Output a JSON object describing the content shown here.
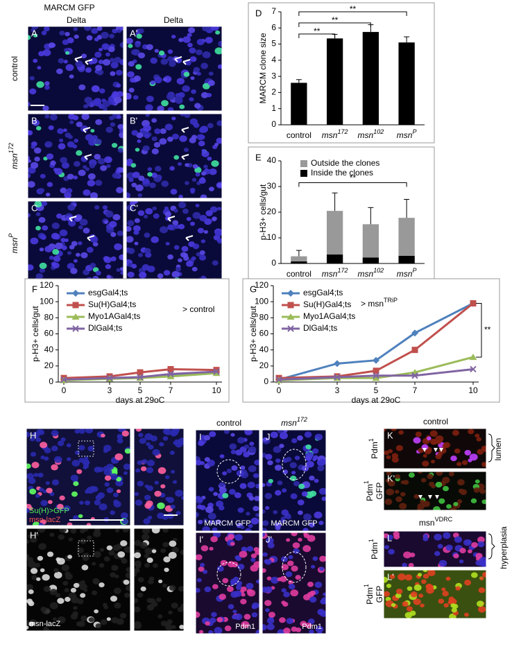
{
  "chart_data": [
    {
      "type": "bar",
      "panel": "D",
      "ylabel": "MARCM clone size",
      "categories": [
        "control",
        "msn172",
        "msn102",
        "msnP"
      ],
      "values": [
        2.6,
        5.35,
        5.75,
        5.1
      ],
      "errors": [
        0.2,
        0.25,
        0.45,
        0.35
      ],
      "color": "#000000",
      "ylim": [
        0,
        7
      ],
      "yticks": [
        0,
        1,
        2,
        3,
        4,
        5,
        6,
        7
      ],
      "annotations": [
        "**",
        "**",
        "**"
      ]
    },
    {
      "type": "stacked_bar",
      "panel": "E",
      "ylabel": "p-H3+ cells/gut",
      "categories": [
        "control",
        "msn172",
        "msn102",
        "msnP"
      ],
      "series": [
        {
          "name": "Inside the clones",
          "color": "#000000",
          "values": [
            0.8,
            3.5,
            2.3,
            3.0
          ],
          "errors": [
            0.5,
            1.5,
            2.0,
            1.2
          ]
        },
        {
          "name": "Outside the clones",
          "color": "#999999",
          "values": [
            2.0,
            17.0,
            13.0,
            14.8
          ],
          "errors": [
            2.3,
            7.0,
            6.5,
            7.2
          ]
        }
      ],
      "ylim": [
        0,
        40
      ],
      "yticks": [
        0,
        10,
        20,
        30,
        40
      ],
      "annotations": [
        "**"
      ]
    },
    {
      "type": "line",
      "panel": "F",
      "ylabel": "p-H3+ cells/gut",
      "xlabel": "days at 29oC",
      "x": [
        0,
        3,
        5,
        7,
        10
      ],
      "xlim": [
        0,
        10
      ],
      "xticks": [
        0,
        3,
        5,
        7,
        10
      ],
      "series": [
        {
          "name": "esgGal4;ts",
          "color": "#4f81bd",
          "marker": "diamond",
          "values": [
            3,
            5,
            6,
            8,
            12
          ]
        },
        {
          "name": "Su(H)Gal4;ts",
          "color": "#c0504d",
          "marker": "square",
          "values": [
            5,
            7,
            12,
            16,
            15
          ]
        },
        {
          "name": "Myo1AGal4;ts",
          "color": "#9bbb59",
          "marker": "triangle",
          "values": [
            2,
            4,
            5,
            7,
            11
          ]
        },
        {
          "name": "DlGal4;ts",
          "color": "#8064a2",
          "marker": "x",
          "values": [
            3,
            5,
            6,
            10,
            13
          ]
        }
      ],
      "ylim": [
        0,
        120
      ],
      "yticks": [
        0,
        20,
        40,
        60,
        80,
        100,
        120
      ],
      "annotations": [
        "> control"
      ]
    },
    {
      "type": "line",
      "panel": "G",
      "ylabel": "p-H3+ cells/gut",
      "xlabel": "days at 29oC",
      "x": [
        0,
        3,
        5,
        7,
        10
      ],
      "xlim": [
        0,
        10
      ],
      "xticks": [
        0,
        3,
        5,
        7,
        10
      ],
      "series": [
        {
          "name": "esgGal4;ts",
          "color": "#4f81bd",
          "marker": "diamond",
          "values": [
            3,
            23,
            27,
            61,
            98
          ]
        },
        {
          "name": "Su(H)Gal4;ts",
          "color": "#c0504d",
          "marker": "square",
          "values": [
            5,
            7,
            14,
            40,
            98
          ]
        },
        {
          "name": "Myo1AGal4;ts",
          "color": "#9bbb59",
          "marker": "triangle",
          "values": [
            2,
            5,
            5,
            12,
            31
          ]
        },
        {
          "name": "DlGal4;ts",
          "color": "#8064a2",
          "marker": "x",
          "values": [
            3,
            6,
            8,
            8,
            16
          ]
        }
      ],
      "ylim": [
        0,
        120
      ],
      "yticks": [
        0,
        20,
        40,
        60,
        80,
        100,
        120
      ],
      "annotations": [
        "> msnTRiP",
        "**"
      ]
    }
  ],
  "images": [
    {
      "letter": "A"
    },
    {
      "letter": "A'"
    },
    {
      "letter": "B"
    },
    {
      "letter": "B'"
    },
    {
      "letter": "C"
    },
    {
      "letter": "C'"
    },
    {
      "letter": "H",
      "labels": [
        "Su(H)>GFP",
        "msn-lacZ"
      ]
    },
    {
      "letter": "H'",
      "labels": [
        "msn-lacZ"
      ]
    },
    {
      "letter": "I",
      "labels": [
        "MARCM GFP"
      ]
    },
    {
      "letter": "J",
      "labels": [
        "MARCM GFP"
      ]
    },
    {
      "letter": "I'",
      "labels": [
        "Pdm1"
      ]
    },
    {
      "letter": "J'",
      "labels": [
        "Pdm1"
      ]
    },
    {
      "letter": "K"
    },
    {
      "letter": "K'"
    },
    {
      "letter": "L"
    },
    {
      "letter": "L'"
    }
  ],
  "headers": {
    "marcm": "MARCM GFP",
    "delta_left": "Delta",
    "delta_right": "Delta",
    "row_control": "control",
    "row_msn172": "msn172",
    "row_msnP": "msnP",
    "col_control": "control",
    "col_msn172": "msn172",
    "k_control": "control",
    "l_msnVDRC": "msnVDRC",
    "k_side": "Pdm1",
    "kp_side_1": "Pdm1",
    "kp_side_2": "GFP",
    "l_side": "Pdm1",
    "lp_side_1": "Pdm1",
    "lp_side_2": "GFP",
    "lumen": "lumen",
    "hyperplasia": "hyperplasia"
  }
}
